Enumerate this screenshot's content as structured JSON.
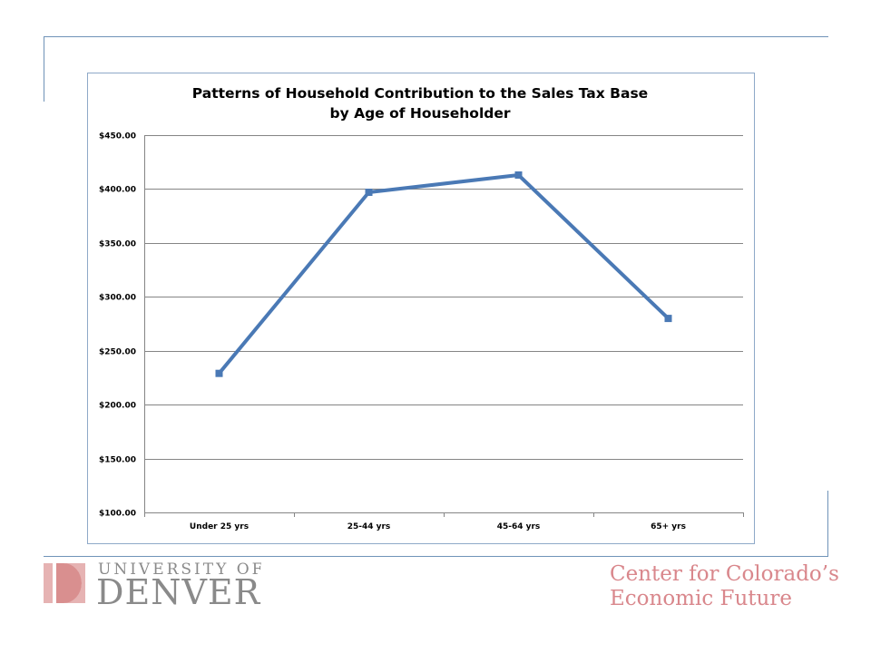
{
  "chart_data": {
    "type": "line",
    "title_lines": [
      "Patterns of Household Contribution to the Sales Tax Base",
      "by Age of Householder"
    ],
    "categories": [
      "Under 25 yrs",
      "25-44 yrs",
      "45-64 yrs",
      "65+ yrs"
    ],
    "series": [
      {
        "values": [
          229,
          397,
          413,
          280
        ],
        "color": "#4a79b5"
      }
    ],
    "ylim": [
      100,
      450
    ],
    "y_ticks": [
      100,
      150,
      200,
      250,
      300,
      350,
      400,
      450
    ],
    "y_tick_labels": [
      "$100.00",
      "$150.00",
      "$200.00",
      "$250.00",
      "$300.00",
      "$350.00",
      "$400.00",
      "$450.00"
    ],
    "grid": true,
    "legend": "none",
    "xlabel": "",
    "ylabel": ""
  },
  "footer": {
    "university_top": "UNIVERSITY OF",
    "university_main": "DENVER",
    "center_line1": "Center for Colorado’s",
    "center_line2": "Economic Future"
  },
  "colors": {
    "slide_lines": "#6f93b8",
    "series": "#4a79b5",
    "logo_gray": "#8a8a8a",
    "logo_pink": "#e0a5a5",
    "center_text": "#d9878c"
  }
}
